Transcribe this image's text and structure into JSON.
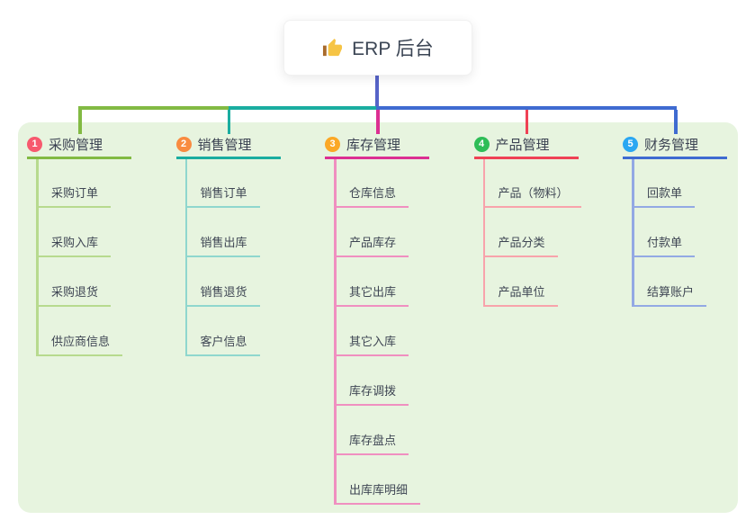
{
  "root": {
    "label": "ERP 后台",
    "icon": "thumbs-up"
  },
  "canvas": {
    "background": "#ffffff",
    "panel_background": "#e7f4df",
    "root_connector_color": "#5663c8",
    "header_text_color": "#3b4252",
    "child_text_color": "#3f4654"
  },
  "branches": [
    {
      "number": "1",
      "label": "采购管理",
      "colors": {
        "badge": "#f7596e",
        "line": "#82ba43",
        "child_line": "#b7da8e"
      },
      "children": [
        "采购订单",
        "采购入库",
        "采购退货",
        "供应商信息"
      ]
    },
    {
      "number": "2",
      "label": "销售管理",
      "colors": {
        "badge": "#f98b40",
        "line": "#1aada0",
        "child_line": "#8fd7ce"
      },
      "children": [
        "销售订单",
        "销售出库",
        "销售退货",
        "客户信息"
      ]
    },
    {
      "number": "3",
      "label": "库存管理",
      "colors": {
        "badge": "#fba826",
        "line": "#dc2f92",
        "child_line": "#f08fc0"
      },
      "children": [
        "仓库信息",
        "产品库存",
        "其它出库",
        "其它入库",
        "库存调拨",
        "库存盘点",
        "出库库明细"
      ]
    },
    {
      "number": "4",
      "label": "产品管理",
      "colors": {
        "badge": "#2ebd57",
        "line": "#ef4155",
        "child_line": "#f8a3ab"
      },
      "children": [
        "产品（物料）",
        "产品分类",
        "产品单位"
      ]
    },
    {
      "number": "5",
      "label": "财务管理",
      "colors": {
        "badge": "#2aa7f2",
        "line": "#3f6bd1",
        "child_line": "#93a9e4"
      },
      "children": [
        "回款单",
        "付款单",
        "结算账户"
      ]
    }
  ]
}
